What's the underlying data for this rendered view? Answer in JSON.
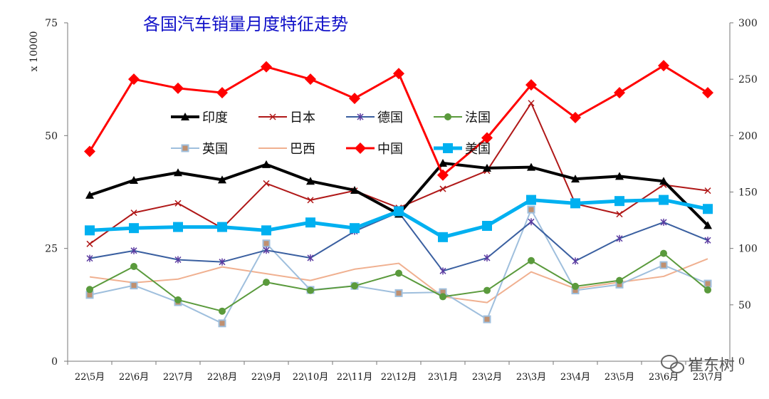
{
  "chart_data": {
    "type": "line",
    "title": "各国汽车销量月度特征走势",
    "y_unit_label": "x 10000",
    "categories": [
      "22\\5月",
      "22\\6月",
      "22\\7月",
      "22\\8月",
      "22\\9月",
      "22\\10月",
      "22\\11月",
      "22\\12月",
      "23\\1月",
      "23\\2月",
      "23\\3月",
      "23\\4月",
      "23\\5月",
      "23\\6月",
      "23\\7月"
    ],
    "y_left": {
      "range": [
        0,
        75
      ],
      "ticks": [
        "0",
        "25",
        "50",
        "75"
      ]
    },
    "y_right": {
      "range": [
        0,
        300
      ],
      "ticks": [
        "0",
        "50",
        "100",
        "150",
        "200",
        "250",
        "300"
      ]
    },
    "grid": false,
    "legend_position": "upper-left-inside",
    "series": [
      {
        "name": "印度",
        "axis": "left",
        "color": "#000000",
        "marker": "triangle",
        "width": 4,
        "values": [
          36.8,
          40.1,
          41.8,
          40.2,
          43.6,
          39.9,
          37.9,
          32.6,
          43.9,
          42.8,
          43.0,
          40.4,
          41.0,
          39.9,
          30.1
        ]
      },
      {
        "name": "日本",
        "axis": "left",
        "color": "#b01818",
        "marker": "x",
        "width": 2,
        "values": [
          26.0,
          32.9,
          35.0,
          29.5,
          39.4,
          35.7,
          37.8,
          34.0,
          38.2,
          42.2,
          57.2,
          34.9,
          32.6,
          39.1,
          37.8
        ]
      },
      {
        "name": "德国",
        "axis": "left",
        "color": "#3a5fa0",
        "marker": "star",
        "width": 2,
        "values": [
          22.8,
          24.5,
          22.5,
          22.0,
          24.6,
          22.9,
          28.8,
          33.0,
          20.0,
          22.9,
          30.9,
          22.2,
          27.2,
          30.8,
          26.8
        ]
      },
      {
        "name": "法国",
        "axis": "left",
        "color": "#5a9a3c",
        "marker": "circle",
        "width": 2,
        "values": [
          15.9,
          21.0,
          13.6,
          11.1,
          17.5,
          15.7,
          16.7,
          19.5,
          14.3,
          15.7,
          22.3,
          16.6,
          17.9,
          23.9,
          15.8
        ]
      },
      {
        "name": "英国",
        "axis": "left",
        "color": "#9fbfdd",
        "marker": "square",
        "width": 2,
        "values": [
          14.7,
          16.8,
          13.1,
          8.4,
          26.1,
          15.8,
          16.7,
          15.1,
          15.3,
          9.3,
          33.6,
          15.7,
          17.0,
          21.3,
          17.2
        ]
      },
      {
        "name": "巴西",
        "axis": "left",
        "color": "#f0b090",
        "marker": "none",
        "width": 2,
        "values": [
          18.7,
          17.4,
          18.2,
          20.9,
          19.4,
          17.9,
          20.4,
          21.7,
          14.3,
          13.0,
          19.8,
          16.1,
          17.5,
          18.8,
          22.7
        ]
      },
      {
        "name": "中国",
        "axis": "right",
        "color": "#ff0000",
        "marker": "diamond",
        "width": 3,
        "values": [
          186,
          250,
          242,
          238,
          261,
          250,
          233,
          255,
          165,
          198,
          245,
          216,
          238,
          262,
          238
        ]
      },
      {
        "name": "美国",
        "axis": "right",
        "color": "#00b0f0",
        "marker": "square-solid",
        "width": 5,
        "values": [
          116,
          118,
          119,
          119,
          116,
          123,
          118,
          133,
          110,
          120,
          143,
          140,
          142,
          143,
          135
        ]
      }
    ]
  },
  "watermark": "崔东树"
}
